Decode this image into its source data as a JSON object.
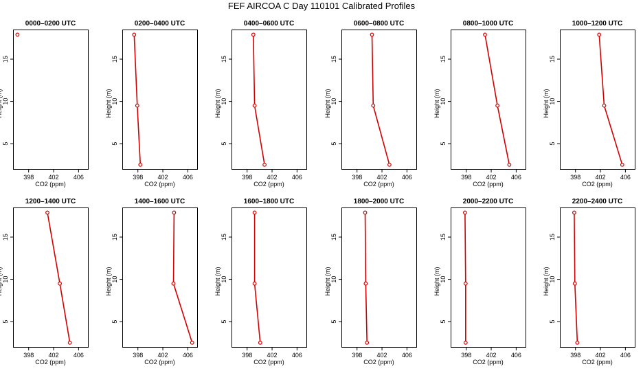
{
  "chart_data": {
    "type": "line",
    "title": "FEF AIRCOA C  Day 110101  Calibrated Profiles",
    "xlabel": "CO2 (ppm)",
    "ylabel": "Height (m)",
    "xlim": [
      395.5,
      407.5
    ],
    "ylim": [
      2,
      18.5
    ],
    "xticks": [
      398,
      402,
      406
    ],
    "yticks": [
      5,
      10,
      15
    ],
    "heights": [
      17.9,
      9.5,
      2.5
    ],
    "line_color": "#d40000",
    "panels": [
      {
        "title": "0000–0200 UTC",
        "co2": [
          396.2,
          null,
          null
        ]
      },
      {
        "title": "0200–0400 UTC",
        "co2": [
          397.4,
          397.9,
          398.4
        ]
      },
      {
        "title": "0400–0600 UTC",
        "co2": [
          399.0,
          399.2,
          400.8
        ]
      },
      {
        "title": "0600–0800 UTC",
        "co2": [
          400.4,
          400.6,
          403.2
        ]
      },
      {
        "title": "0800–1000 UTC",
        "co2": [
          401.0,
          403.0,
          404.9
        ]
      },
      {
        "title": "1000–1200 UTC",
        "co2": [
          401.8,
          402.6,
          405.5
        ]
      },
      {
        "title": "1200–1400 UTC",
        "co2": [
          401.0,
          403.0,
          404.6
        ]
      },
      {
        "title": "1400–1600 UTC",
        "co2": [
          403.8,
          403.7,
          406.7
        ]
      },
      {
        "title": "1600–1800 UTC",
        "co2": [
          399.2,
          399.2,
          400.1
        ]
      },
      {
        "title": "1800–2000 UTC",
        "co2": [
          399.3,
          399.4,
          399.6
        ]
      },
      {
        "title": "2000–2200 UTC",
        "co2": [
          397.8,
          397.9,
          397.9
        ]
      },
      {
        "title": "2200–2400 UTC",
        "co2": [
          397.8,
          397.9,
          398.3
        ]
      }
    ]
  }
}
